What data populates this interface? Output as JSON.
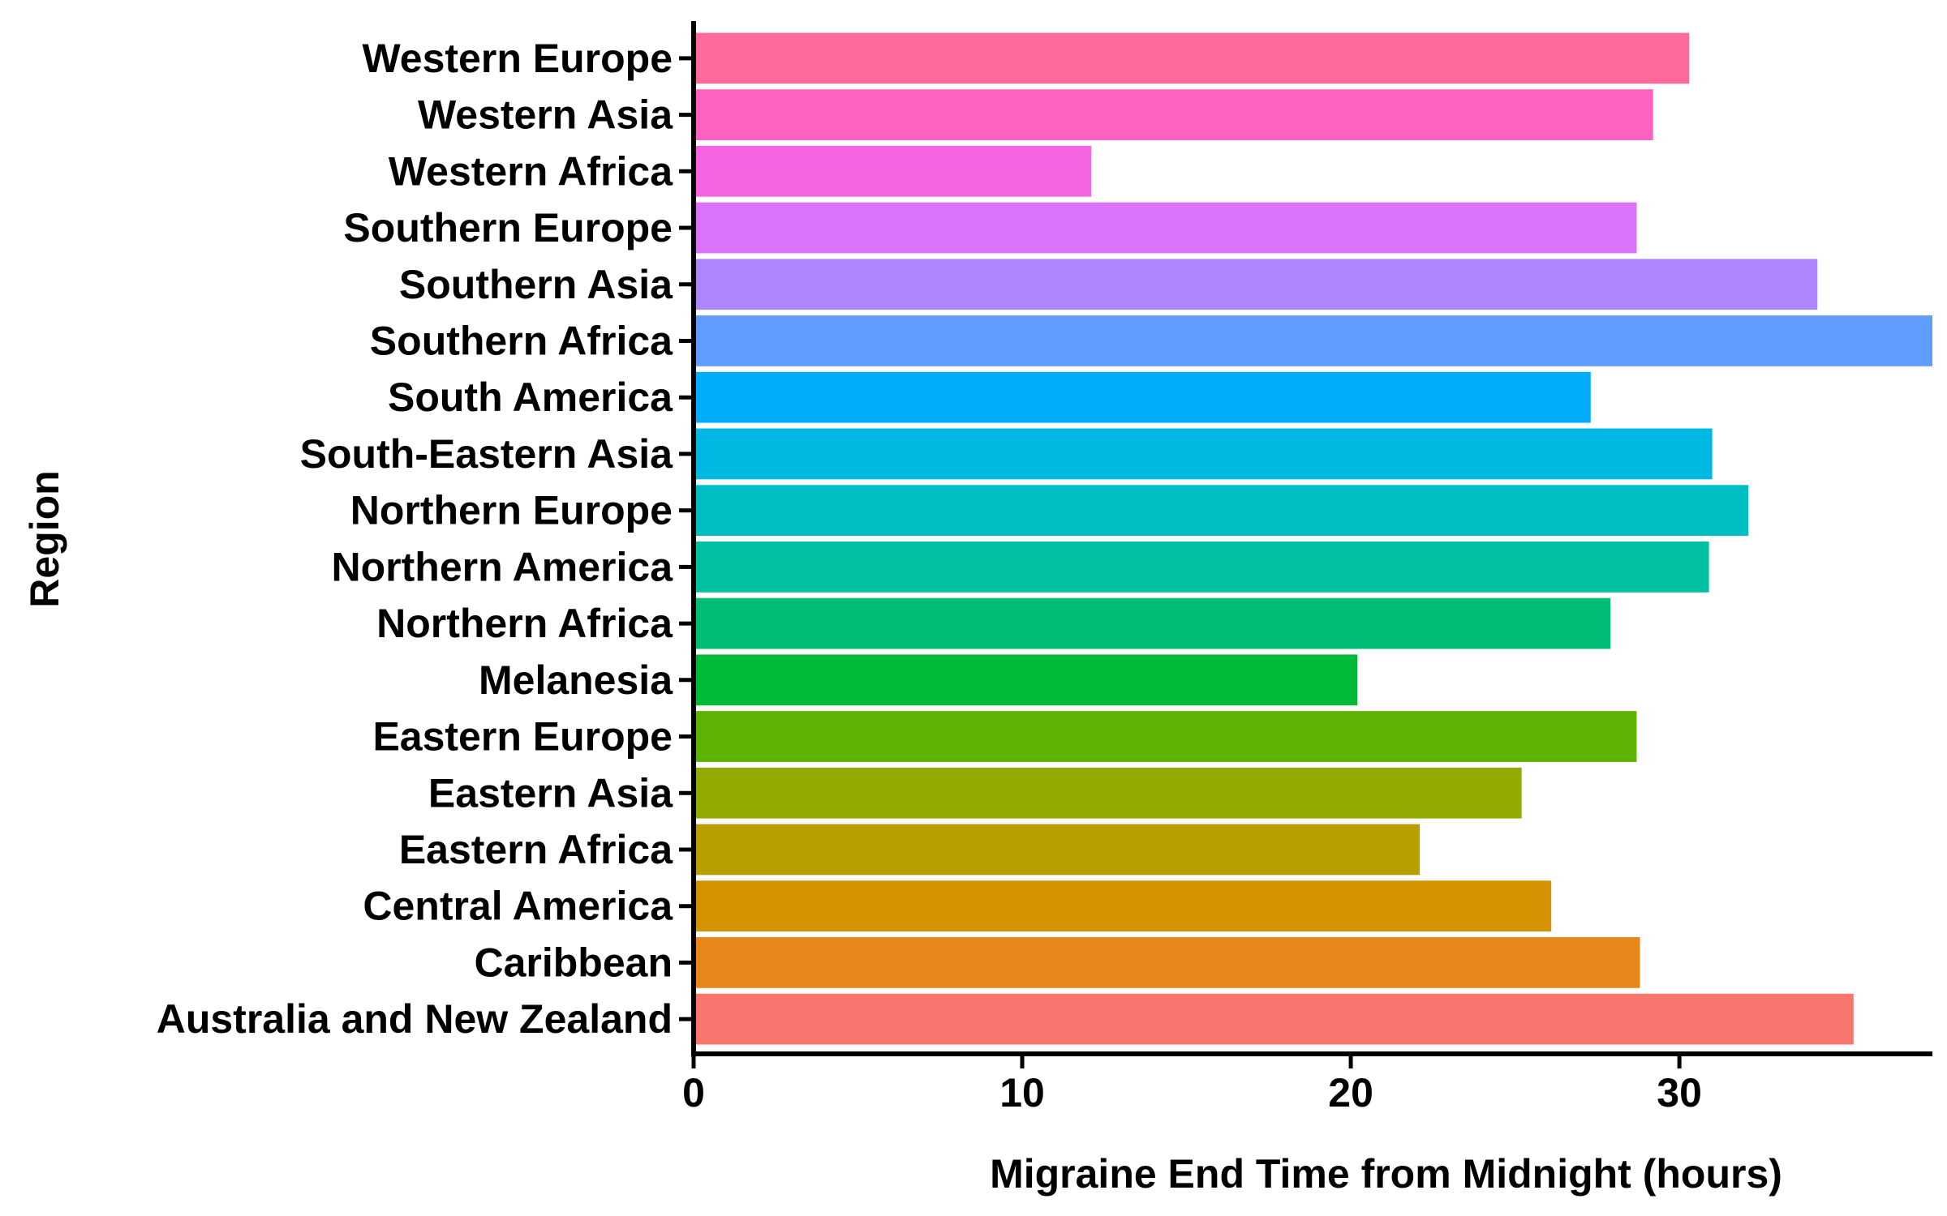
{
  "chart_data": {
    "type": "bar",
    "orientation": "horizontal",
    "xlabel": "Migraine End Time from Midnight (hours)",
    "ylabel": "Region",
    "xlim": [
      0,
      37.7
    ],
    "xticks": [
      0,
      10,
      20,
      30
    ],
    "grid": false,
    "legend": "none",
    "categories": [
      "Australia and New Zealand",
      "Caribbean",
      "Central America",
      "Eastern Africa",
      "Eastern Asia",
      "Eastern Europe",
      "Melanesia",
      "Northern Africa",
      "Northern America",
      "Northern Europe",
      "South-Eastern Asia",
      "South America",
      "Southern Africa",
      "Southern Asia",
      "Southern Europe",
      "Western Africa",
      "Western Asia",
      "Western Europe"
    ],
    "values": [
      35.3,
      28.8,
      26.1,
      22.1,
      25.2,
      28.7,
      20.2,
      27.9,
      30.9,
      32.1,
      31.0,
      27.3,
      37.7,
      34.2,
      28.7,
      12.1,
      29.2,
      30.3
    ],
    "colors": [
      "#F8766D",
      "#E7861B",
      "#D39200",
      "#B79F00",
      "#93AA00",
      "#5EB300",
      "#00BA38",
      "#00BF74",
      "#00C19F",
      "#00BFC4",
      "#00B9E3",
      "#00ADFA",
      "#619CFF",
      "#AE87FF",
      "#DB72FB",
      "#F564E3",
      "#FF61C3",
      "#FF699C"
    ]
  }
}
